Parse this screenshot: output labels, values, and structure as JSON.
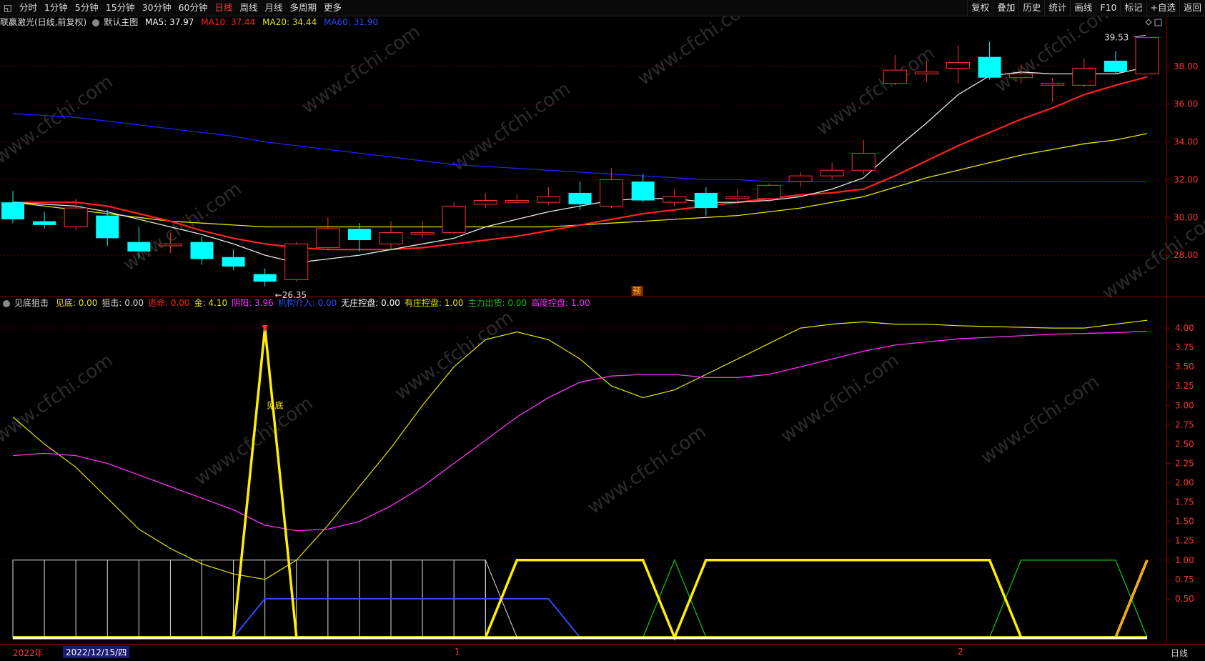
{
  "toolbar": {
    "periods": [
      "分时",
      "1分钟",
      "5分钟",
      "15分钟",
      "30分钟",
      "60分钟",
      "日线",
      "周线",
      "月线",
      "多周期",
      "更多"
    ],
    "active_period": "日线",
    "right_buttons": [
      "复权",
      "叠加",
      "历史",
      "统计",
      "画线",
      "F10",
      "标记",
      "+自选",
      "返回"
    ]
  },
  "main_info": {
    "stock": "联赢激光(日线,前复权)",
    "template": "默认主图",
    "ma5": "MA5: 37.97",
    "ma10": "MA10: 37.44",
    "ma20": "MA20: 34.44",
    "ma60": "MA60: 31.90",
    "colors": {
      "ma5": "#ffffff",
      "ma10": "#ff2020",
      "ma20": "#e6e600",
      "ma60": "#2020ff"
    }
  },
  "price_axis": [
    "38.00",
    "36.00",
    "34.00",
    "32.00",
    "30.00",
    "28.00"
  ],
  "price_annotations": {
    "high": "39.53",
    "low": "26.35",
    "pre_badge": "预"
  },
  "indicator_info": {
    "name": "见底狙击",
    "items": [
      {
        "label": "见底: 0.00",
        "color": "#e6e600"
      },
      {
        "label": "狙击: 0.00",
        "color": "#dddddd"
      },
      {
        "label": "逃命: 0.00",
        "color": "#ff2020"
      },
      {
        "label": "金: 4.10",
        "color": "#e6e600"
      },
      {
        "label": "阴阳: 3.96",
        "color": "#ff30ff"
      },
      {
        "label": "机构介入: 0.00",
        "color": "#2a4bff"
      },
      {
        "label": "无庄控盘: 0.00",
        "color": "#ffffff"
      },
      {
        "label": "有庄控盘: 1.00",
        "color": "#e6e600"
      },
      {
        "label": "主力出货: 0.00",
        "color": "#10c010"
      },
      {
        "label": "高度控盘: 1.00",
        "color": "#ff30ff"
      }
    ],
    "signal_label": "见底"
  },
  "indicator_axis": [
    "4.00",
    "3.75",
    "3.50",
    "3.25",
    "3.00",
    "2.75",
    "2.50",
    "2.25",
    "2.00",
    "1.75",
    "1.50",
    "1.25",
    "1.00",
    "0.75",
    "0.50"
  ],
  "date_bar": {
    "year": "2022年",
    "cursor_date": "2022/12/15/四",
    "month_1": "1",
    "month_2": "2",
    "period_badge": "日线"
  },
  "watermark": "www.cfchi.com",
  "chart_data": {
    "type": "candlestick",
    "candles": [
      [
        30.8,
        29.9,
        31.4,
        29.7
      ],
      [
        29.8,
        29.6,
        30.3,
        29.4
      ],
      [
        29.5,
        30.5,
        31.0,
        29.3
      ],
      [
        30.1,
        28.9,
        30.4,
        28.5
      ],
      [
        28.7,
        28.2,
        29.5,
        27.8
      ],
      [
        28.5,
        28.6,
        29.2,
        28.1
      ],
      [
        28.7,
        27.8,
        29.0,
        27.5
      ],
      [
        27.9,
        27.4,
        28.3,
        27.2
      ],
      [
        27.0,
        26.6,
        27.3,
        26.35
      ],
      [
        26.7,
        28.6,
        28.7,
        26.6
      ],
      [
        28.4,
        29.4,
        30.0,
        28.3
      ],
      [
        29.4,
        28.8,
        29.7,
        28.2
      ],
      [
        28.6,
        29.2,
        29.8,
        28.3
      ],
      [
        29.1,
        29.2,
        29.8,
        28.9
      ],
      [
        29.2,
        30.6,
        30.8,
        29.1
      ],
      [
        30.7,
        30.9,
        31.3,
        30.5
      ],
      [
        30.8,
        30.9,
        31.2,
        30.7
      ],
      [
        30.8,
        31.1,
        31.6,
        30.7
      ],
      [
        31.3,
        30.7,
        31.9,
        30.4
      ],
      [
        30.6,
        32.0,
        32.6,
        30.5
      ],
      [
        31.9,
        30.9,
        32.3,
        30.8
      ],
      [
        30.8,
        31.1,
        31.5,
        30.6
      ],
      [
        31.3,
        30.5,
        31.6,
        30.1
      ],
      [
        31.0,
        31.1,
        31.5,
        30.7
      ],
      [
        31.0,
        31.7,
        31.8,
        30.8
      ],
      [
        31.9,
        32.2,
        32.4,
        31.6
      ],
      [
        32.2,
        32.5,
        32.9,
        32.0
      ],
      [
        32.5,
        33.4,
        34.1,
        32.3
      ],
      [
        37.1,
        37.8,
        38.6,
        37.0
      ],
      [
        37.6,
        37.7,
        38.3,
        37.2
      ],
      [
        37.9,
        38.2,
        39.1,
        37.1
      ],
      [
        38.5,
        37.4,
        39.3,
        37.3
      ],
      [
        37.4,
        37.6,
        38.1,
        37.1
      ],
      [
        37.0,
        37.1,
        37.4,
        36.1
      ],
      [
        37.0,
        37.9,
        38.4,
        36.9
      ],
      [
        38.3,
        37.7,
        38.8,
        37.6
      ],
      [
        37.6,
        39.53,
        39.53,
        37.6
      ]
    ],
    "ma5": [
      30.8,
      30.7,
      30.6,
      30.3,
      29.9,
      29.5,
      29.1,
      28.6,
      28.0,
      27.6,
      27.8,
      28.0,
      28.3,
      28.6,
      28.9,
      29.5,
      29.9,
      30.3,
      30.6,
      30.9,
      31.0,
      31.0,
      30.8,
      30.8,
      30.9,
      31.1,
      31.5,
      32.1,
      33.6,
      35.0,
      36.5,
      37.5,
      37.7,
      37.6,
      37.6,
      37.6,
      37.97
    ],
    "ma10": [
      30.8,
      30.8,
      30.8,
      30.6,
      30.2,
      29.8,
      29.3,
      28.9,
      28.6,
      28.4,
      28.3,
      28.3,
      28.3,
      28.4,
      28.6,
      28.8,
      29.0,
      29.3,
      29.6,
      29.9,
      30.2,
      30.4,
      30.6,
      30.8,
      31.0,
      31.2,
      31.3,
      31.5,
      32.2,
      33.0,
      33.8,
      34.5,
      35.2,
      35.8,
      36.5,
      37.0,
      37.44
    ],
    "ma20": [
      30.8,
      30.6,
      30.4,
      30.2,
      30.0,
      29.8,
      29.7,
      29.6,
      29.5,
      29.5,
      29.5,
      29.5,
      29.5,
      29.5,
      29.5,
      29.5,
      29.5,
      29.5,
      29.6,
      29.7,
      29.8,
      29.9,
      30.0,
      30.1,
      30.3,
      30.5,
      30.8,
      31.1,
      31.6,
      32.1,
      32.5,
      32.9,
      33.3,
      33.6,
      33.9,
      34.1,
      34.44
    ],
    "ma60": [
      35.5,
      35.4,
      35.3,
      35.1,
      34.9,
      34.7,
      34.5,
      34.3,
      34.0,
      33.8,
      33.6,
      33.4,
      33.2,
      33.0,
      32.8,
      32.7,
      32.6,
      32.5,
      32.4,
      32.3,
      32.2,
      32.1,
      32.0,
      32.0,
      31.9,
      31.9,
      31.9,
      31.9,
      31.9,
      31.9,
      31.9,
      31.9,
      31.9,
      31.9,
      31.9,
      31.9,
      31.9
    ],
    "gold": [
      2.85,
      2.5,
      2.2,
      1.8,
      1.4,
      1.15,
      0.95,
      0.82,
      0.75,
      1.0,
      1.45,
      1.95,
      2.45,
      3.0,
      3.5,
      3.85,
      3.95,
      3.85,
      3.6,
      3.25,
      3.1,
      3.2,
      3.4,
      3.6,
      3.8,
      4.0,
      4.05,
      4.08,
      4.05,
      4.05,
      4.03,
      4.02,
      4.01,
      4.0,
      4.0,
      4.05,
      4.1
    ],
    "yinyang": [
      2.35,
      2.38,
      2.35,
      2.25,
      2.1,
      1.95,
      1.8,
      1.65,
      1.45,
      1.38,
      1.4,
      1.5,
      1.7,
      1.95,
      2.25,
      2.55,
      2.85,
      3.1,
      3.3,
      3.38,
      3.4,
      3.4,
      3.36,
      3.36,
      3.4,
      3.5,
      3.6,
      3.7,
      3.78,
      3.82,
      3.86,
      3.88,
      3.9,
      3.92,
      3.93,
      3.94,
      3.96
    ],
    "jiandi": [
      0,
      0,
      0,
      0,
      0,
      0,
      0,
      0,
      4.0,
      0,
      0,
      0,
      0,
      0,
      0,
      0,
      0,
      0,
      0,
      0,
      0,
      0,
      0,
      0,
      0,
      0,
      0,
      0,
      0,
      0,
      0,
      0,
      0,
      0,
      0,
      0,
      0
    ],
    "wuzhuang": [
      1,
      1,
      1,
      1,
      1,
      1,
      1,
      1,
      1,
      1,
      1,
      1,
      1,
      1,
      1,
      1,
      0,
      0,
      0,
      0,
      0,
      0,
      0,
      0,
      0,
      0,
      0,
      0,
      0,
      0,
      0,
      0,
      0,
      0,
      0,
      0,
      0
    ],
    "youzhuang": [
      0,
      0,
      0,
      0,
      0,
      0,
      0,
      0,
      0,
      0,
      0,
      0,
      0,
      0,
      0,
      0,
      1,
      1,
      1,
      1,
      1,
      0,
      1,
      1,
      1,
      1,
      1,
      1,
      1,
      1,
      1,
      1,
      0,
      0,
      0,
      0,
      1
    ],
    "jigou": [
      0,
      0,
      0,
      0,
      0,
      0,
      0,
      0,
      0.5,
      0.5,
      0.5,
      0.5,
      0.5,
      0.5,
      0.5,
      0.5,
      0.5,
      0.5,
      0,
      0,
      0,
      0,
      0,
      0,
      0,
      0,
      0,
      0,
      0,
      0,
      0,
      0,
      0,
      0,
      0,
      0,
      0
    ],
    "chuhuo": [
      0,
      0,
      0,
      0,
      0,
      0,
      0,
      0,
      0,
      0,
      0,
      0,
      0,
      0,
      0,
      0,
      0,
      0,
      0,
      0,
      0,
      1,
      0,
      0,
      0,
      0,
      0,
      0,
      0,
      0,
      0,
      0,
      1,
      1,
      1,
      1,
      0
    ],
    "price_range": [
      26.0,
      40.0
    ],
    "indicator_range": [
      0.0,
      4.25
    ]
  }
}
